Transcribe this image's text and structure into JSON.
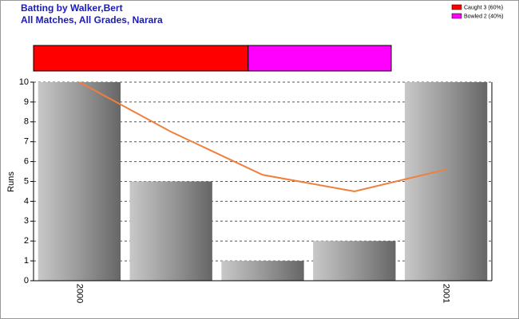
{
  "chart_data": [
    {
      "type": "stacked-bar",
      "series": [
        {
          "name": "Caught 3 (60%)",
          "color": "#ff0000",
          "values": [
            3
          ]
        },
        {
          "name": "Bowled 2 (40%)",
          "color": "#ff00ff",
          "values": [
            2
          ]
        }
      ]
    },
    {
      "type": "bar",
      "title": "Batting by Walker,Bert",
      "subtitle": "All Matches, All Grades, Narara",
      "y_label": "Runs",
      "categories": [
        "2000",
        null,
        null,
        null,
        "2001"
      ],
      "values": [
        10,
        5,
        1,
        2,
        10
      ],
      "color": "#999999",
      "line": {
        "color": "#f07f3c",
        "values": [
          10,
          7.5,
          5.33,
          4.5,
          5.6
        ]
      },
      "ylim": [
        0,
        10
      ],
      "yticks": [
        0,
        1,
        2,
        3,
        4,
        5,
        6,
        7,
        8,
        9,
        10
      ],
      "grid": true
    }
  ]
}
